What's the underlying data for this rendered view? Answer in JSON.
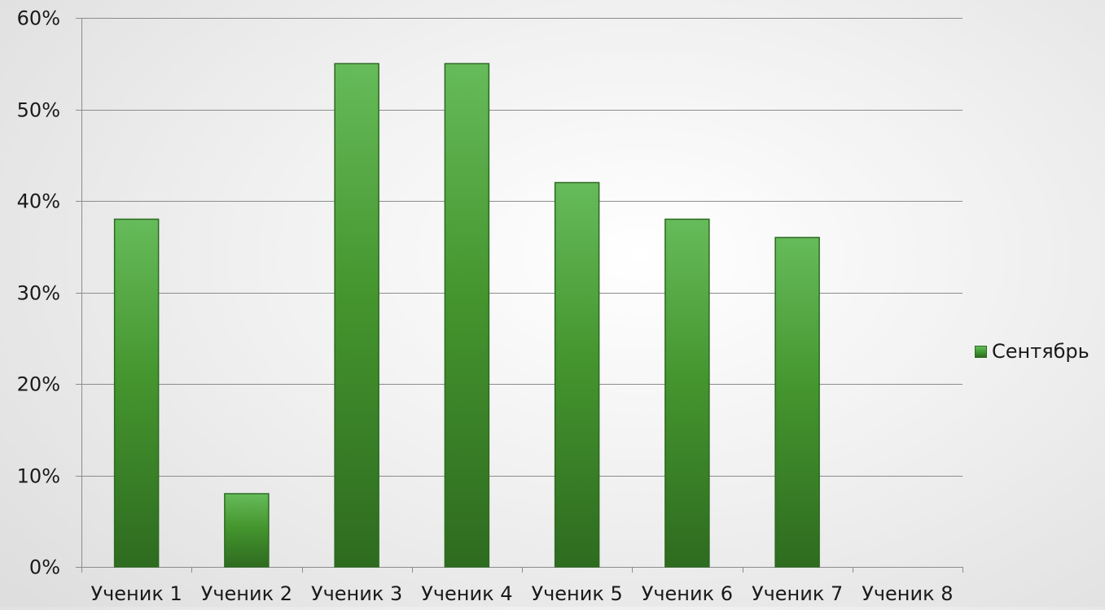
{
  "chart_data": {
    "type": "bar",
    "categories": [
      "Ученик 1",
      "Ученик 2",
      "Ученик 3",
      "Ученик 4",
      "Ученик 5",
      "Ученик 6",
      "Ученик 7",
      "Ученик 8"
    ],
    "series": [
      {
        "name": "Сентябрь",
        "values": [
          38,
          8,
          55,
          55,
          42,
          38,
          36,
          null
        ],
        "color": "#3f9a33"
      }
    ],
    "ylim": [
      0,
      60
    ],
    "yticks": [
      "0%",
      "10%",
      "20%",
      "30%",
      "40%",
      "50%",
      "60%"
    ],
    "grid": true,
    "legend_position": "right"
  }
}
